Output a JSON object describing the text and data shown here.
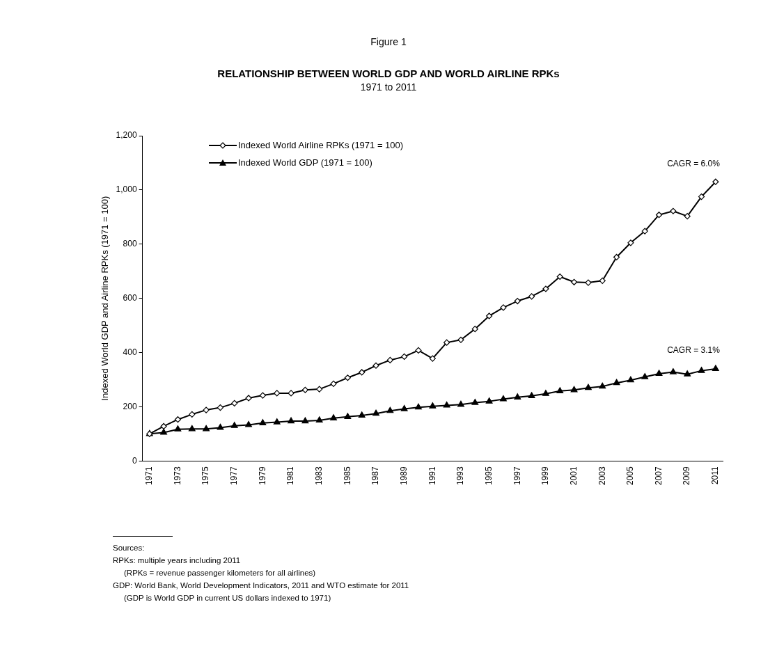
{
  "chart_data": {
    "type": "line",
    "title": "RELATIONSHIP BETWEEN WORLD GDP AND WORLD AIRLINE RPKs",
    "subtitle": "1971 to 2011",
    "ylabel": "Indexed World GDP and Airline RPKs (1971 = 100)",
    "categories": [
      "1971",
      null,
      "1973",
      null,
      "1975",
      null,
      "1977",
      null,
      "1979",
      null,
      "1981",
      null,
      "1983",
      null,
      "1985",
      null,
      "1987",
      null,
      "1989",
      null,
      "1991",
      null,
      "1993",
      null,
      "1995",
      null,
      "1997",
      null,
      "1999",
      null,
      "2001",
      null,
      "2003",
      null,
      "2005",
      null,
      "2007",
      null,
      "2009",
      null,
      "2011"
    ],
    "series": [
      {
        "name": "Indexed World Airline RPKs (1971 = 100)",
        "color": "#000000",
        "marker": "diamond",
        "values": [
          100,
          128,
          153,
          172,
          188,
          197,
          213,
          232,
          242,
          250,
          250,
          262,
          265,
          285,
          307,
          327,
          352,
          372,
          385,
          408,
          378,
          437,
          447,
          487,
          535,
          566,
          590,
          607,
          635,
          680,
          660,
          658,
          665,
          752,
          805,
          848,
          908,
          922,
          903,
          975,
          1030
        ]
      },
      {
        "name": "Indexed World GDP (1971 = 100)",
        "color": "#000000",
        "marker": "triangle",
        "values": [
          100,
          105,
          117,
          118,
          118,
          123,
          130,
          133,
          140,
          143,
          147,
          147,
          150,
          158,
          163,
          168,
          175,
          185,
          192,
          198,
          202,
          205,
          208,
          215,
          220,
          228,
          235,
          240,
          248,
          258,
          262,
          270,
          275,
          288,
          298,
          310,
          322,
          328,
          320,
          333,
          340
        ]
      }
    ],
    "ylim": [
      0,
      1200
    ],
    "yticks": [
      0,
      200,
      400,
      600,
      800,
      {
        "value": 1000,
        "label": "1,000"
      },
      {
        "value": 1200,
        "label": "1,200"
      }
    ],
    "grid": false,
    "legend": "top left",
    "line_style": "solid",
    "annotations": [
      "Figure 1",
      "CAGR = 6.0%",
      "CAGR = 3.1%",
      "Sources:",
      "RPKs: multiple years including 2011",
      "(RPKs = revenue passenger kilometers for all airlines)",
      "GDP:  World Bank, World Development Indicators, 2011 and WTO estimate for 2011",
      "(GDP is World GDP in current US dollars indexed to 1971)"
    ]
  }
}
